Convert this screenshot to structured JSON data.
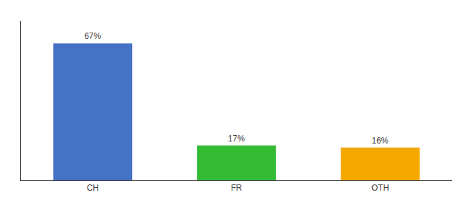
{
  "chart_data": {
    "type": "bar",
    "categories": [
      "CH",
      "FR",
      "OTH"
    ],
    "values": [
      67,
      17,
      16
    ],
    "value_labels": [
      "67%",
      "17%",
      "16%"
    ],
    "colors": [
      "#4472c4",
      "#33bb33",
      "#f5a800"
    ],
    "ylim": [
      0,
      78
    ],
    "grid": false,
    "data_labels": true,
    "tick_labels": "x"
  }
}
